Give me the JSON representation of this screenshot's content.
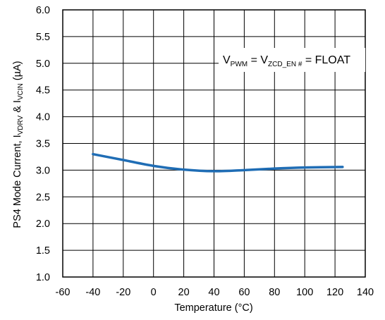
{
  "chart_data": {
    "type": "line",
    "title": "",
    "xlabel": "Temperature (°C)",
    "ylabel": {
      "prefix": "PS4 Mode Current, I",
      "sub1": "VDRV",
      "middle": " & I",
      "sub2": "VCIN",
      "suffix": " (µA)"
    },
    "xlim": [
      -60,
      140
    ],
    "ylim": [
      1.0,
      6.0
    ],
    "xticks": [
      -60,
      -40,
      -20,
      0,
      20,
      40,
      60,
      80,
      100,
      120,
      140
    ],
    "yticks": [
      1.0,
      1.5,
      2.0,
      2.5,
      3.0,
      3.5,
      4.0,
      4.5,
      5.0,
      5.5,
      6.0
    ],
    "xtick_labels": [
      "-60",
      "-40",
      "-20",
      "0",
      "20",
      "40",
      "60",
      "80",
      "100",
      "120",
      "140"
    ],
    "ytick_labels": [
      "1.0",
      "1.5",
      "2.0",
      "2.5",
      "3.0",
      "3.5",
      "4.0",
      "4.5",
      "5.0",
      "5.5",
      "6.0"
    ],
    "grid": true,
    "series": [
      {
        "x": [
          -40,
          -20,
          0,
          20,
          40,
          60,
          80,
          100,
          125
        ],
        "y": [
          3.3,
          3.19,
          3.08,
          3.01,
          2.98,
          3.0,
          3.03,
          3.05,
          3.06
        ],
        "color": "#1f6db5"
      }
    ],
    "annotation": {
      "v1": "V",
      "s1": "PWM",
      "eq1": " = V",
      "s2": "ZCD_EN #",
      "eq2": " = FLOAT"
    }
  },
  "colors": {
    "line": "#1f6db5",
    "grid": "#000000",
    "background": "#ffffff"
  }
}
